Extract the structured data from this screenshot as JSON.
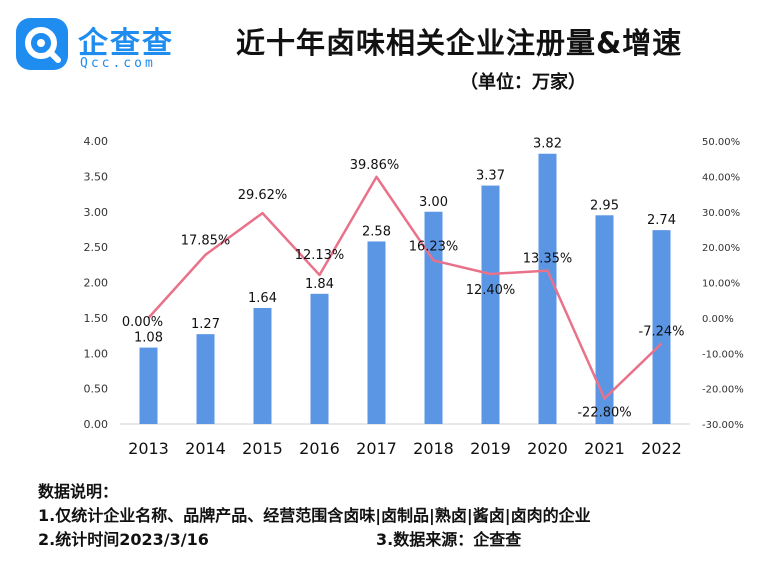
{
  "brand": {
    "name": "企查查",
    "domain": "Qcc.com",
    "color": "#1f8cf0"
  },
  "title": "近十年卤味相关企业注册量&增速",
  "unit": "（单位：万家）",
  "chart_data": {
    "type": "bar+line",
    "categories": [
      "2013",
      "2014",
      "2015",
      "2016",
      "2017",
      "2018",
      "2019",
      "2020",
      "2021",
      "2022"
    ],
    "series": [
      {
        "name": "注册量",
        "type": "bar",
        "axis": "left",
        "color": "#5b96e5",
        "values": [
          1.08,
          1.27,
          1.64,
          1.84,
          2.58,
          3.0,
          3.37,
          3.82,
          2.95,
          2.74
        ],
        "labels": [
          "1.08",
          "1.27",
          "1.64",
          "1.84",
          "2.58",
          "3.00",
          "3.37",
          "3.82",
          "2.95",
          "2.74"
        ]
      },
      {
        "name": "增速",
        "type": "line",
        "axis": "right",
        "color": "#e9728a",
        "values": [
          0.0,
          17.85,
          29.62,
          12.13,
          39.86,
          16.23,
          12.4,
          13.35,
          -22.8,
          -7.24
        ],
        "labels": [
          "0.00%",
          "17.85%",
          "29.62%",
          "12.13%",
          "39.86%",
          "16.23%",
          "12.40%",
          "13.35%",
          "-22.80%",
          "-7.24%"
        ]
      }
    ],
    "y_left": {
      "min": 0,
      "max": 4,
      "ticks": [
        "0.00",
        "0.50",
        "1.00",
        "1.50",
        "2.00",
        "2.50",
        "3.00",
        "3.50",
        "4.00"
      ]
    },
    "y_right": {
      "min": -30,
      "max": 50,
      "ticks": [
        "-30.00%",
        "-20.00%",
        "-10.00%",
        "0.00%",
        "10.00%",
        "20.00%",
        "30.00%",
        "40.00%",
        "50.00%"
      ]
    },
    "grid": false,
    "legend": "none"
  },
  "notes": {
    "heading": "数据说明：",
    "line1": "1.仅统计企业名称、品牌产品、经营范围含卤味|卤制品|熟卤|酱卤|卤肉的企业",
    "line2a": "2.统计时间2023/3/16",
    "line2b": "3.数据来源：企查查"
  }
}
